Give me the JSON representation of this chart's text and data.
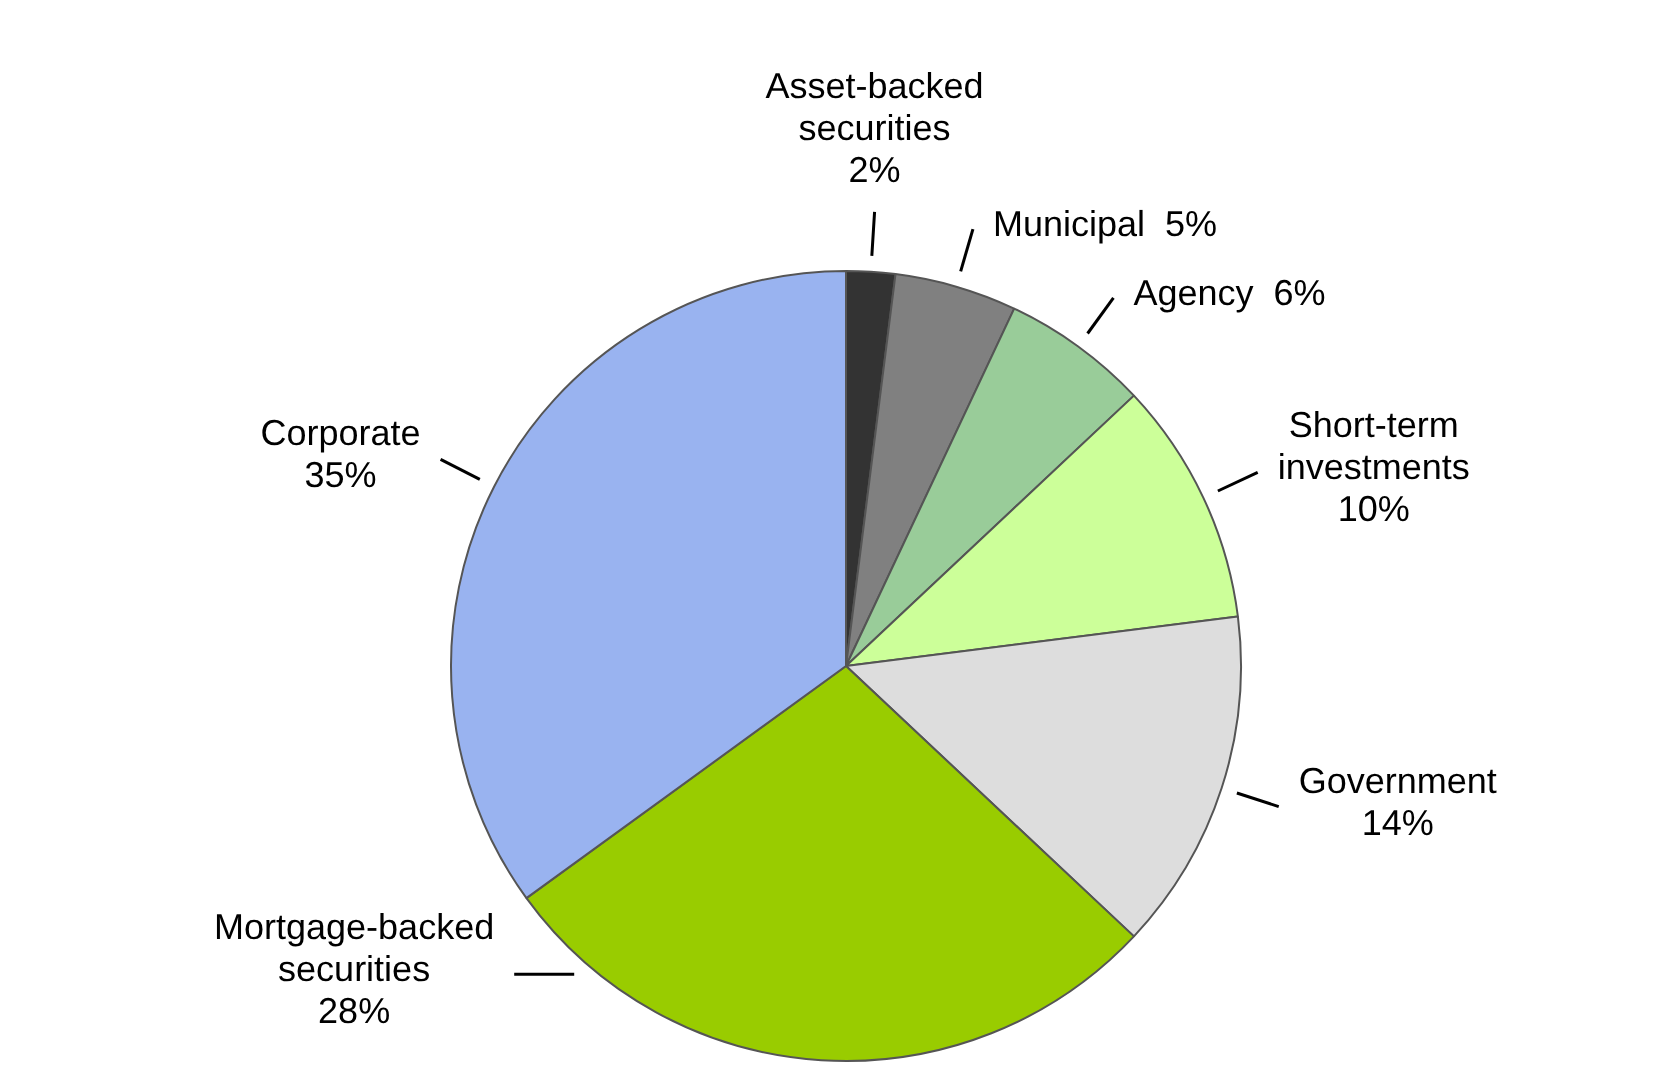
{
  "chart_data": {
    "type": "pie",
    "categories": [
      "Asset-backed securities",
      "Municipal",
      "Agency",
      "Short-term investments",
      "Government",
      "Mortgage-backed securities",
      "Corporate"
    ],
    "values": [
      2,
      5,
      6,
      10,
      14,
      28,
      35
    ],
    "value_labels": [
      "2%",
      "5%",
      "6%",
      "10%",
      "14%",
      "28%",
      "35%"
    ],
    "colors": [
      "#333333",
      "#808080",
      "#99cc99",
      "#ccff99",
      "#dddddd",
      "#99cc00",
      "#99b3f0"
    ],
    "legend": false
  }
}
